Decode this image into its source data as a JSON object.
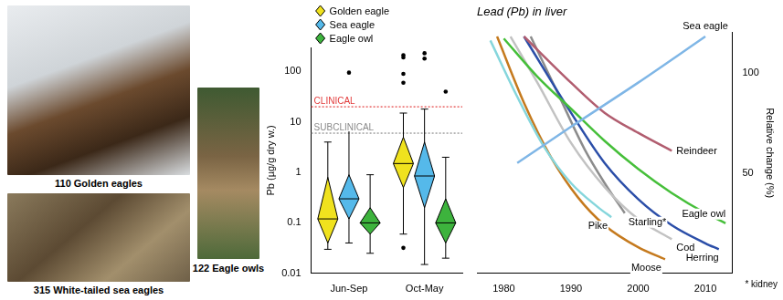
{
  "images": [
    {
      "caption": "110 Golden eagles"
    },
    {
      "caption": "315 White-tailed sea eagles"
    },
    {
      "caption": "122 Eagle owls"
    }
  ],
  "chart_data": [
    {
      "type": "box",
      "ylabel": "Pb (µg/g dry w.)",
      "categories": [
        "Jun-Sep",
        "Oct-May"
      ],
      "log": "y",
      "ylim": [
        0.01,
        300
      ],
      "yticks": [
        0.01,
        0.1,
        1,
        10,
        100
      ],
      "grid": false,
      "legend": "upper left",
      "marker": "diamond",
      "series": [
        {
          "name": "Golden eagle",
          "color": "#f0e21e",
          "min": [
            0.03,
            0.06
          ],
          "q1": [
            0.04,
            0.5
          ],
          "median": [
            0.12,
            1.5
          ],
          "q3": [
            0.8,
            5
          ],
          "max": [
            4,
            15
          ],
          "outliers": [
            [],
            [
              0.032,
              60,
              90,
              190,
              210
            ]
          ]
        },
        {
          "name": "Sea eagle",
          "color": "#55b9ea",
          "min": [
            0.04,
            0.015
          ],
          "q1": [
            0.12,
            0.2
          ],
          "median": [
            0.3,
            0.85
          ],
          "q3": [
            0.9,
            4
          ],
          "max": [
            7,
            18
          ],
          "outliers": [
            [
              95
            ],
            [
              180,
              230
            ]
          ]
        },
        {
          "name": "Eagle owl",
          "color": "#3db33d",
          "min": [
            0.025,
            0.02
          ],
          "q1": [
            0.06,
            0.04
          ],
          "median": [
            0.1,
            0.1
          ],
          "q3": [
            0.2,
            0.3
          ],
          "max": [
            0.9,
            2
          ],
          "outliers": [
            [],
            [
              40
            ]
          ]
        }
      ],
      "annotations": [
        {
          "text": "CLINICAL",
          "y": 20,
          "color": "#e23a3a",
          "line_style": "dotted"
        },
        {
          "text": "SUBCLINICAL",
          "y": 6,
          "color": "#8a8a8a",
          "line_style": "dotted"
        }
      ]
    },
    {
      "type": "line",
      "title": "Lead (Pb) in liver",
      "ylabel": "Relative change (%)",
      "xlim": [
        1976,
        2014
      ],
      "xticks": [
        1980,
        1990,
        2000,
        2010
      ],
      "ylim": [
        0,
        120
      ],
      "yticks": [
        50,
        100
      ],
      "grid": false,
      "annotations": [
        "* kidney"
      ],
      "series": [
        {
          "name": "Sea eagle",
          "color": "#7fb6e6",
          "x": [
            1982,
            1990,
            2000,
            2010
          ],
          "values": [
            55,
            73,
            95,
            118
          ]
        },
        {
          "name": "Reindeer",
          "color": "#b15d6f",
          "x": [
            1983,
            1990,
            1995,
            2000,
            2005
          ],
          "values": [
            118,
            95,
            80,
            70,
            61
          ]
        },
        {
          "name": "Eagle owl",
          "color": "#46bf3a",
          "x": [
            1980,
            1985,
            1990,
            1995,
            2000,
            2005,
            2010,
            2013
          ],
          "values": [
            117,
            98,
            82,
            66,
            52,
            40,
            30,
            25
          ]
        },
        {
          "name": "Herring",
          "color": "#2b4ea8",
          "x": [
            1983,
            1990,
            1995,
            2000,
            2005,
            2010,
            2012
          ],
          "values": [
            118,
            80,
            55,
            37,
            24,
            15,
            12
          ]
        },
        {
          "name": "Cod",
          "color": "#c2c2c2",
          "x": [
            1981,
            1985,
            1990,
            1995,
            2000,
            2005
          ],
          "values": [
            118,
            95,
            65,
            43,
            27,
            17
          ]
        },
        {
          "name": "Starling*",
          "color": "#8c8c8c",
          "x": [
            1984,
            1988,
            1992,
            1995,
            1998
          ],
          "values": [
            118,
            90,
            62,
            45,
            30
          ]
        },
        {
          "name": "Pike",
          "color": "#86d6dc",
          "x": [
            1978,
            1982,
            1986,
            1990,
            1994,
            1996
          ],
          "values": [
            116,
            88,
            63,
            45,
            33,
            28
          ]
        },
        {
          "name": "Moose",
          "color": "#c57a1e",
          "x": [
            1979,
            1983,
            1987,
            1991,
            1995,
            2000,
            2004
          ],
          "values": [
            118,
            85,
            58,
            38,
            24,
            13,
            7
          ]
        }
      ]
    }
  ]
}
